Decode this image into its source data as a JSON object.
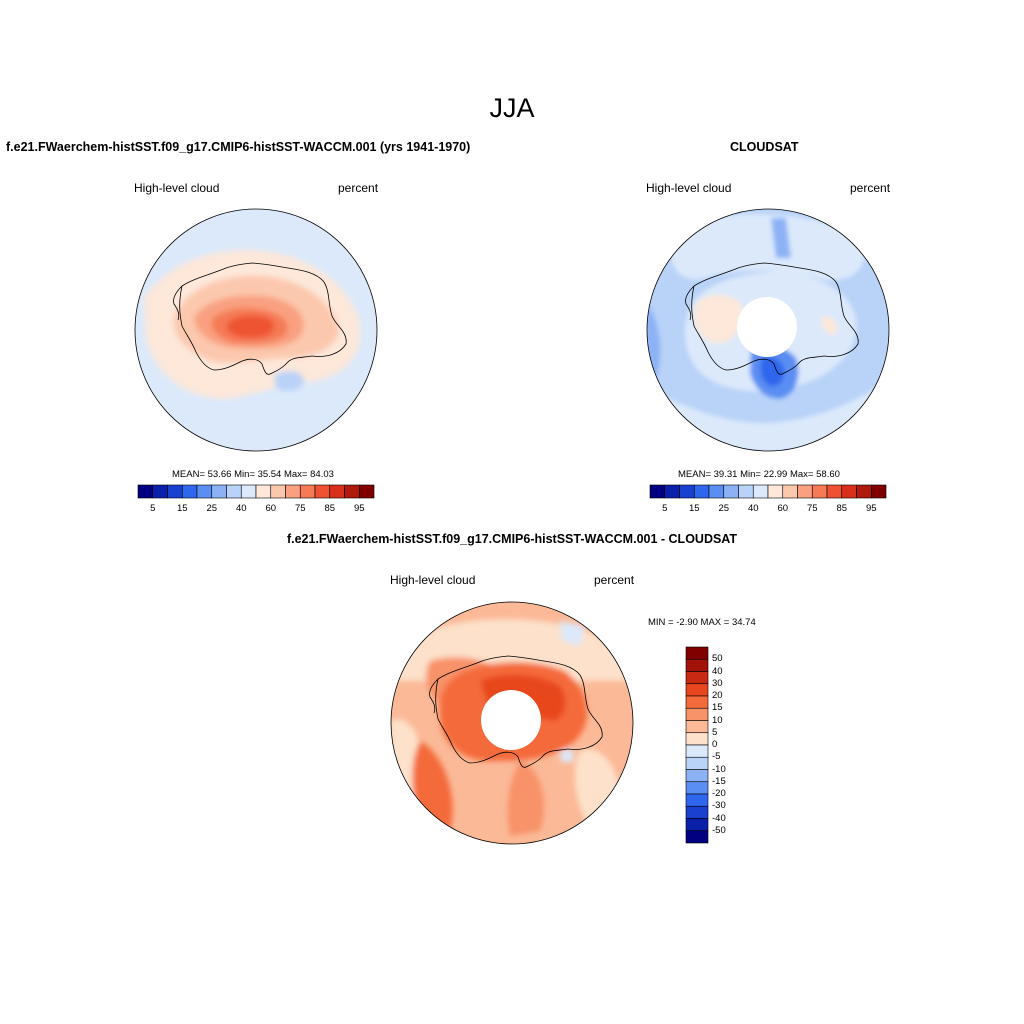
{
  "figure": {
    "season_title": "JJA",
    "colors": {
      "continent_outline": "#000000",
      "missing_data": "#ffffff"
    }
  },
  "panels": [
    {
      "id": "model",
      "title": "f.e21.FWaerchem-histSST.f09_g17.CMIP6-histSST-WACCM.001 (yrs 1941-1970)",
      "variable": "High-level cloud",
      "units": "percent",
      "stats": {
        "mean_label": "MEAN=",
        "mean": "53.66",
        "min_label": "Min=",
        "min": "35.54",
        "max_label": "Max=",
        "max": "84.03"
      }
    },
    {
      "id": "obs",
      "title": "CLOUDSAT",
      "variable": "High-level cloud",
      "units": "percent",
      "stats": {
        "mean_label": "MEAN=",
        "mean": "39.31",
        "min_label": "Min=",
        "min": "22.99",
        "max_label": "Max=",
        "max": "58.60"
      }
    },
    {
      "id": "diff",
      "title": "f.e21.FWaerchem-histSST.f09_g17.CMIP6-histSST-WACCM.001 - CLOUDSAT",
      "variable": "High-level cloud",
      "units": "percent",
      "stats": {
        "min_label": "MIN =",
        "min": "-2.90",
        "max_label": "MAX =",
        "max": "34.74"
      }
    }
  ],
  "colorbars": {
    "absolute": {
      "orientation": "horizontal",
      "colors": [
        "#000080",
        "#0a20a8",
        "#1a40d0",
        "#2f66ee",
        "#5a8ef2",
        "#8cb2f5",
        "#b8d2f8",
        "#dbe9fb",
        "#fde8da",
        "#fcc8ad",
        "#f9a080",
        "#f57a55",
        "#ee5230",
        "#d8301a",
        "#b01a0c",
        "#800000"
      ],
      "tick_labels": [
        "5",
        "15",
        "25",
        "40",
        "60",
        "75",
        "85",
        "95"
      ]
    },
    "difference": {
      "orientation": "vertical",
      "colors": [
        "#800000",
        "#a31209",
        "#c72913",
        "#e8461f",
        "#f46b3b",
        "#f89269",
        "#fbb997",
        "#fde1ca",
        "#dbe9fb",
        "#b8d2f8",
        "#8cb2f5",
        "#5a8ef2",
        "#2f66ee",
        "#1a40d0",
        "#0a20a8",
        "#000080"
      ],
      "tick_labels": [
        "50",
        "40",
        "30",
        "20",
        "15",
        "10",
        "5",
        "0",
        "-5",
        "-10",
        "-15",
        "-20",
        "-30",
        "-40",
        "-50"
      ]
    }
  }
}
